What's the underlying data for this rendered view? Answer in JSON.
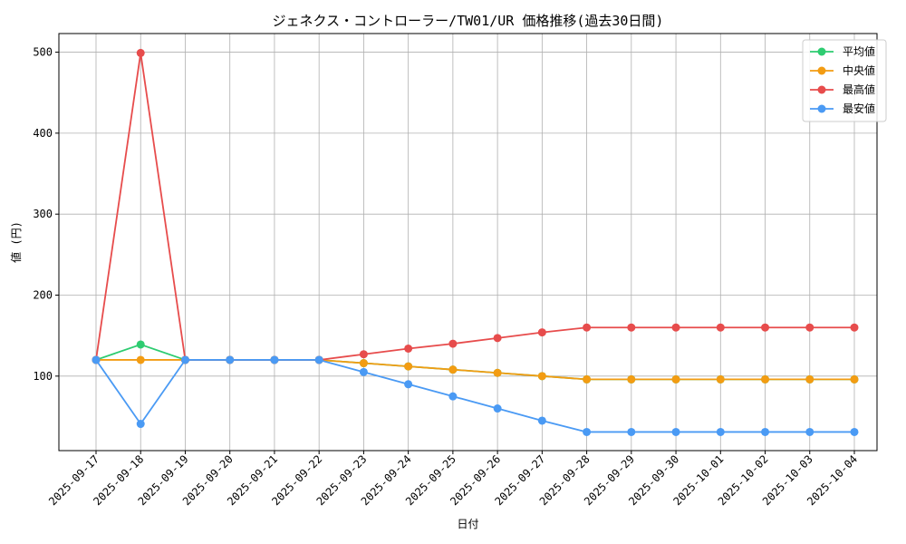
{
  "chart_data": {
    "type": "line",
    "title": "ジェネクス・コントローラー/TW01/UR 価格推移(過去30日間)",
    "xlabel": "日付",
    "ylabel": "値 (円)",
    "categories": [
      "2025-09-17",
      "2025-09-18",
      "2025-09-19",
      "2025-09-20",
      "2025-09-21",
      "2025-09-22",
      "2025-09-23",
      "2025-09-24",
      "2025-09-25",
      "2025-09-26",
      "2025-09-27",
      "2025-09-28",
      "2025-09-29",
      "2025-09-30",
      "2025-10-01",
      "2025-10-02",
      "2025-10-03",
      "2025-10-04"
    ],
    "ylim": [
      8,
      523
    ],
    "yticks": [
      100,
      200,
      300,
      400,
      500
    ],
    "grid": true,
    "legend_position": "top-right",
    "series": [
      {
        "name": "平均値",
        "color": "#2ecc71",
        "values": [
          120,
          139,
          120,
          120,
          120,
          120,
          116,
          112,
          108,
          104,
          100,
          96,
          96,
          96,
          96,
          96,
          96,
          96
        ]
      },
      {
        "name": "中央値",
        "color": "#f39c12",
        "values": [
          120,
          120,
          120,
          120,
          120,
          120,
          116,
          112,
          108,
          104,
          100,
          96,
          96,
          96,
          96,
          96,
          96,
          96
        ]
      },
      {
        "name": "最高値",
        "color": "#e74c4c",
        "values": [
          120,
          499,
          120,
          120,
          120,
          120,
          127,
          134,
          140,
          147,
          154,
          160,
          160,
          160,
          160,
          160,
          160,
          160
        ]
      },
      {
        "name": "最安値",
        "color": "#4a9af4",
        "values": [
          120,
          41,
          120,
          120,
          120,
          120,
          105,
          90,
          75,
          60,
          45,
          31,
          31,
          31,
          31,
          31,
          31,
          31
        ]
      }
    ]
  }
}
